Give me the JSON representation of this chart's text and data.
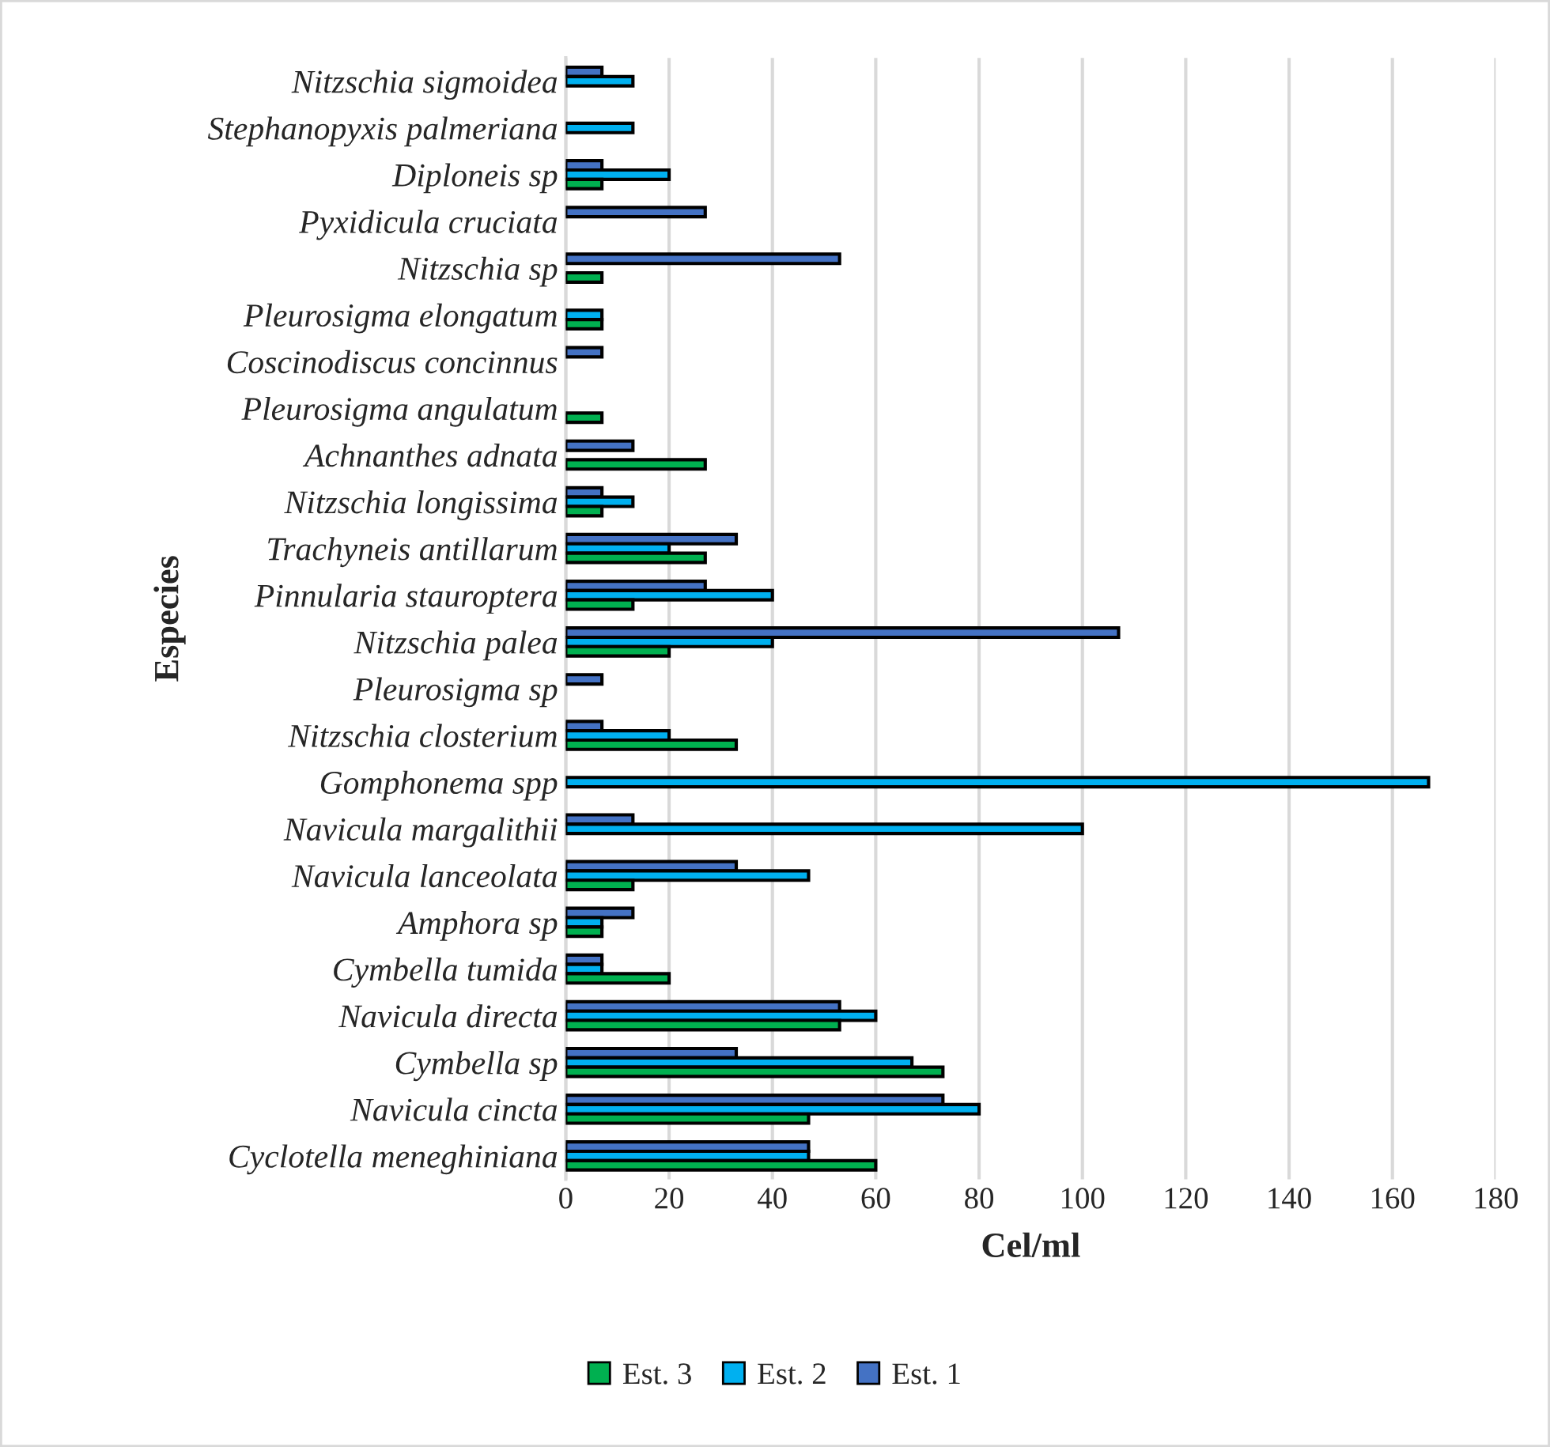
{
  "chart_data": {
    "type": "bar",
    "orientation": "horizontal",
    "xlabel": "Cel/ml",
    "ylabel": "Especies",
    "categories": [
      "Nitzschia sigmoidea",
      "Stephanopyxis palmeriana",
      "Diploneis sp",
      "Pyxidicula cruciata",
      "Nitzschia sp",
      "Pleurosigma elongatum",
      "Coscinodiscus concinnus",
      "Pleurosigma angulatum",
      "Achnanthes adnata",
      "Nitzschia longissima",
      "Trachyneis antillarum",
      "Pinnularia stauroptera",
      "Nitzschia palea",
      "Pleurosigma sp",
      "Nitzschia closterium",
      "Gomphonema spp",
      "Navicula margalithii",
      "Navicula lanceolata",
      "Amphora sp",
      "Cymbella tumida",
      "Navicula directa",
      "Cymbella sp",
      "Navicula cincta",
      "Cyclotella meneghiniana"
    ],
    "series": [
      {
        "name": "Est. 1",
        "color": "#4472c4",
        "values": [
          7,
          null,
          7,
          27,
          53,
          null,
          7,
          null,
          13,
          7,
          33,
          27,
          107,
          7,
          7,
          null,
          13,
          33,
          13,
          7,
          53,
          33,
          73,
          47
        ]
      },
      {
        "name": "Est. 2",
        "color": "#00b0f0",
        "values": [
          13,
          13,
          20,
          null,
          null,
          7,
          null,
          null,
          null,
          13,
          20,
          40,
          40,
          null,
          20,
          167,
          100,
          47,
          7,
          7,
          60,
          67,
          80,
          47
        ]
      },
      {
        "name": "Est. 3",
        "color": "#00b050",
        "values": [
          null,
          null,
          7,
          null,
          7,
          7,
          null,
          7,
          27,
          7,
          27,
          13,
          20,
          null,
          33,
          null,
          null,
          13,
          7,
          20,
          53,
          73,
          47,
          60
        ]
      }
    ],
    "xlim": [
      0,
      180
    ],
    "xticks": [
      0,
      20,
      40,
      60,
      80,
      100,
      120,
      140,
      160,
      180
    ],
    "grid": "x",
    "legend": "bottom"
  }
}
